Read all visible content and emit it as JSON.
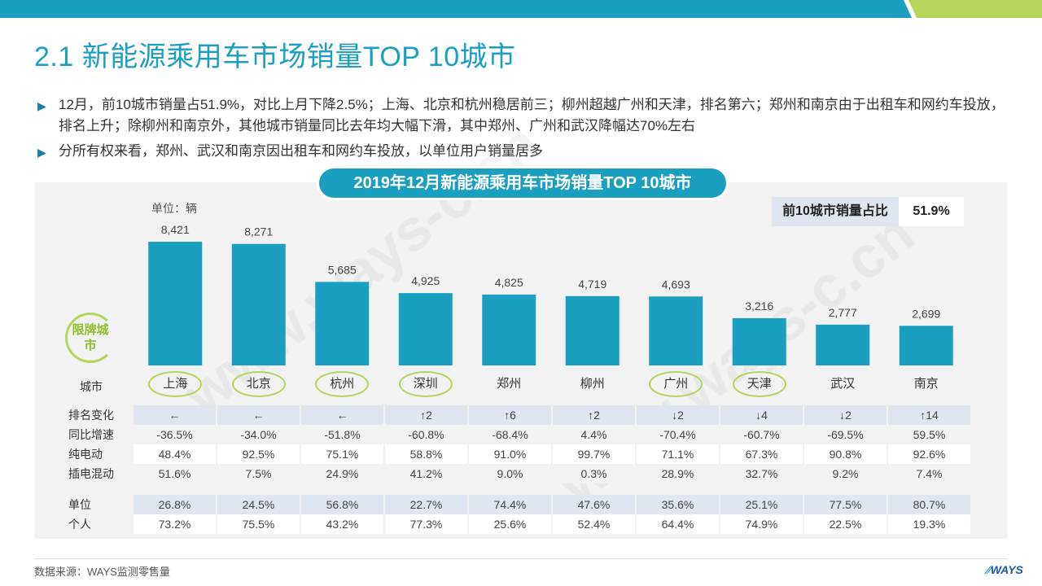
{
  "title": "2.1 新能源乘用车市场销量TOP 10城市",
  "bullets": [
    "12月，前10城市销量占51.9%，对比上月下降2.5%；上海、北京和杭州稳居前三；柳州超越广州和天津，排名第六；郑州和南京由于出租车和网约车投放，排名上升；除柳州和南京外，其他城市销量同比去年均大幅下滑，其中郑州、广州和武汉降幅达70%左右",
    "分所有权来看，郑州、武汉和南京因出租车和网约车投放，以单位用户销量居多"
  ],
  "unit_label": "单位：辆",
  "share": {
    "label": "前10城市销量占比",
    "value": "51.9%"
  },
  "limit_badge": "限牌城市",
  "city_row_label": "城市",
  "watermark": "www.ways-c.cn",
  "colors": {
    "accent": "#1b9fc0",
    "bar": "#1b9fc0",
    "ring": "#b5d55a",
    "band_light": "#dfe6f0"
  },
  "chart_data": {
    "type": "bar",
    "title": "2019年12月新能源乘用车市场销量TOP 10城市",
    "ylabel": "单位：辆",
    "categories": [
      "上海",
      "北京",
      "杭州",
      "深圳",
      "郑州",
      "柳州",
      "广州",
      "天津",
      "武汉",
      "南京"
    ],
    "values": [
      8421,
      8271,
      5685,
      4925,
      4825,
      4719,
      4693,
      3216,
      2777,
      2699
    ],
    "value_labels": [
      "8,421",
      "8,271",
      "5,685",
      "4,925",
      "4,825",
      "4,719",
      "4,693",
      "3,216",
      "2,777",
      "2,699"
    ],
    "limit_cities": [
      true,
      true,
      true,
      true,
      false,
      false,
      true,
      true,
      false,
      false
    ],
    "ylim": [
      0,
      9000
    ],
    "grid": false
  },
  "table": {
    "rows": [
      {
        "label": "排名变化",
        "style": "a",
        "values": [
          "←",
          "←",
          "←",
          "↑2",
          "↑6",
          "↑2",
          "↓2",
          "↓4",
          "↓2",
          "↑14"
        ]
      },
      {
        "label": "同比增速",
        "style": "b",
        "values": [
          "-36.5%",
          "-34.0%",
          "-51.8%",
          "-60.8%",
          "-68.4%",
          "4.4%",
          "-70.4%",
          "-60.7%",
          "-69.5%",
          "59.5%"
        ]
      },
      {
        "label": "纯电动",
        "style": "c",
        "values": [
          "48.4%",
          "92.5%",
          "75.1%",
          "58.8%",
          "91.0%",
          "99.7%",
          "71.1%",
          "67.3%",
          "90.8%",
          "92.6%"
        ]
      },
      {
        "label": "插电混动",
        "style": "b",
        "values": [
          "51.6%",
          "7.5%",
          "24.9%",
          "41.2%",
          "9.0%",
          "0.3%",
          "28.9%",
          "32.7%",
          "9.2%",
          "7.4%"
        ]
      }
    ],
    "ownership_rows": [
      {
        "label": "单位",
        "style": "a",
        "values": [
          "26.8%",
          "24.5%",
          "56.8%",
          "22.7%",
          "74.4%",
          "47.6%",
          "35.6%",
          "25.1%",
          "77.5%",
          "80.7%"
        ]
      },
      {
        "label": "个人",
        "style": "c",
        "values": [
          "73.2%",
          "75.5%",
          "43.2%",
          "77.3%",
          "25.6%",
          "52.4%",
          "64.4%",
          "74.9%",
          "22.5%",
          "19.3%"
        ]
      }
    ]
  },
  "footer": {
    "source": "数据来源：WAYS监测零售量",
    "logo": "WAYS"
  }
}
